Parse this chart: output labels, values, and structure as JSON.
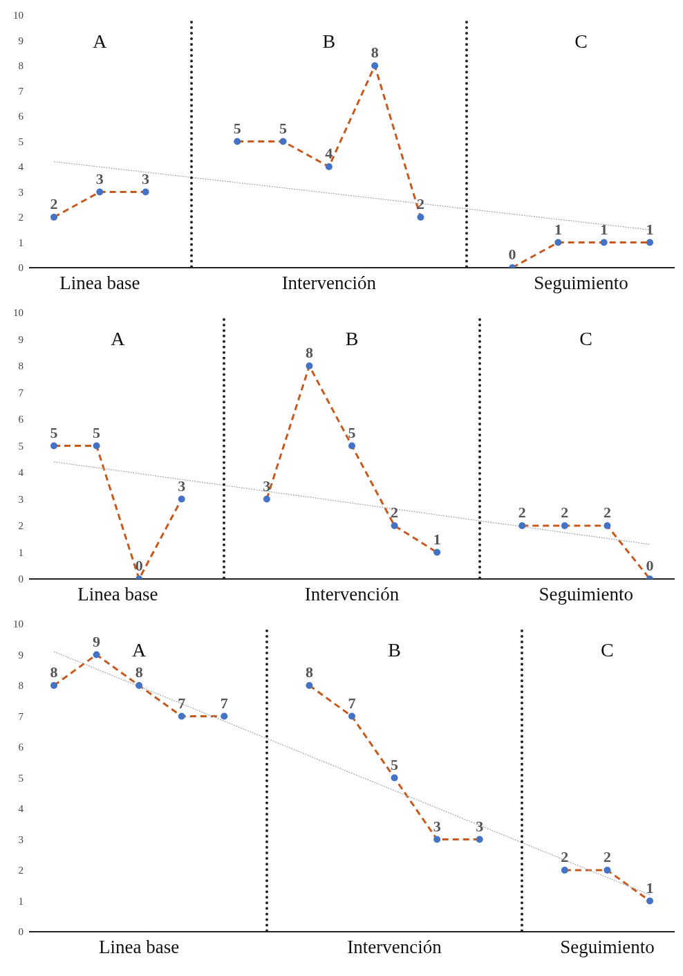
{
  "chart_data": [
    {
      "type": "line",
      "categories": [
        null,
        null,
        null,
        null,
        null,
        null,
        null,
        null,
        null,
        null,
        null,
        null,
        null,
        null
      ],
      "ylim": [
        0,
        10
      ],
      "yticks": [
        0,
        1,
        2,
        3,
        4,
        5,
        6,
        7,
        8,
        9,
        10
      ],
      "tick_labels": "y",
      "series": [
        {
          "color": "#c65a1e",
          "line_style": "dashed",
          "marker": "circle",
          "values": [
            2,
            3,
            3,
            null,
            5,
            5,
            4,
            8,
            2,
            null,
            0,
            1,
            1,
            1
          ],
          "value_labels": [
            "2",
            "3",
            "3",
            null,
            "5",
            "5",
            "4",
            "8",
            "2",
            null,
            "0",
            "1",
            "1",
            "1"
          ],
          "colors": [
            "#4472c4",
            "#4472c4",
            "#4472c4",
            null,
            "#4472c4",
            "#4472c4",
            "#4472c4",
            "#4472c4",
            "#4472c4",
            null,
            "#4472c4",
            "#4472c4",
            "#4472c4",
            "#4472c4"
          ]
        },
        {
          "type": "line",
          "color": "#aaaaaa",
          "line_style": "dotted",
          "values": [
            4.2,
            null,
            null,
            null,
            null,
            null,
            null,
            null,
            null,
            null,
            null,
            null,
            null,
            1.5
          ]
        }
      ],
      "annotations": [
        "A",
        "B",
        "C",
        "Linea base",
        "Intervención",
        "Seguimiento"
      ]
    },
    {
      "type": "line",
      "categories": [
        null,
        null,
        null,
        null,
        null,
        null,
        null,
        null,
        null,
        null,
        null,
        null,
        null,
        null,
        null
      ],
      "ylim": [
        0,
        10
      ],
      "yticks": [
        0,
        1,
        2,
        3,
        4,
        5,
        6,
        7,
        8,
        9,
        10
      ],
      "tick_labels": "y",
      "series": [
        {
          "color": "#c65a1e",
          "line_style": "dashed",
          "marker": "circle",
          "values": [
            5,
            5,
            0,
            3,
            null,
            3,
            8,
            5,
            2,
            1,
            null,
            2,
            2,
            2,
            0
          ],
          "value_labels": [
            "5",
            "5",
            "0",
            "3",
            null,
            "3",
            "8",
            "5",
            "2",
            "1",
            null,
            "2",
            "2",
            "2",
            "0"
          ],
          "colors": [
            "#4472c4",
            "#4472c4",
            "#4472c4",
            "#4472c4",
            null,
            "#4472c4",
            "#4472c4",
            "#4472c4",
            "#4472c4",
            "#4472c4",
            null,
            "#4472c4",
            "#4472c4",
            "#4472c4",
            "#4472c4"
          ]
        },
        {
          "type": "line",
          "color": "#aaaaaa",
          "line_style": "dotted",
          "values": [
            4.4,
            null,
            null,
            null,
            null,
            null,
            null,
            null,
            null,
            null,
            null,
            null,
            null,
            null,
            1.3
          ]
        }
      ],
      "annotations": [
        "A",
        "B",
        "C",
        "Linea base",
        "Intervención",
        "Seguimiento"
      ]
    },
    {
      "type": "line",
      "categories": [
        null,
        null,
        null,
        null,
        null,
        null,
        null,
        null,
        null,
        null,
        null,
        null,
        null,
        null,
        null
      ],
      "ylim": [
        0,
        10
      ],
      "yticks": [
        0,
        1,
        2,
        3,
        4,
        5,
        6,
        7,
        8,
        9,
        10
      ],
      "tick_labels": "y",
      "series": [
        {
          "color": "#c65a1e",
          "line_style": "dashed",
          "marker": "circle",
          "values": [
            8,
            9,
            8,
            7,
            7,
            null,
            8,
            7,
            5,
            3,
            3,
            null,
            2,
            2,
            1
          ],
          "value_labels": [
            "8",
            "9",
            "8",
            "7",
            "7",
            null,
            "8",
            "7",
            "5",
            "3",
            "3",
            null,
            "2",
            "2",
            "1"
          ],
          "colors": [
            "#4472c4",
            "#4472c4",
            "#4472c4",
            "#4472c4",
            "#4472c4",
            null,
            "#4472c4",
            "#4472c4",
            "#4472c4",
            "#4472c4",
            "#4472c4",
            null,
            "#4472c4",
            "#4472c4",
            "#4472c4"
          ]
        },
        {
          "type": "line",
          "color": "#aaaaaa",
          "line_style": "dotted",
          "values": [
            9.1,
            null,
            null,
            null,
            null,
            null,
            null,
            null,
            null,
            null,
            null,
            null,
            null,
            null,
            1.2
          ]
        }
      ],
      "annotations": [
        "A",
        "B",
        "C",
        "Linea base",
        "Intervención",
        "Seguimiento"
      ]
    }
  ]
}
